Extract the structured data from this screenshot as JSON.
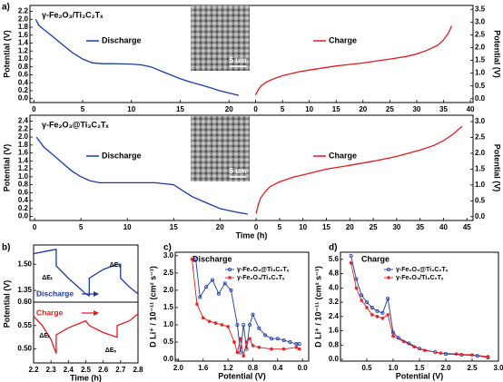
{
  "chart_data": [
    {
      "type": "line",
      "panel": "a)",
      "title": "γ-Fe₂O₃/Ti₃C₂Tₓ",
      "ylabel": "Potential (V)",
      "y2label": "Potential (V)",
      "image_scale": "5 um",
      "xlim": [
        -0.4,
        22.4
      ],
      "xticks": [
        0,
        5,
        10,
        15,
        20
      ],
      "x2lim": [
        -0.6,
        40.5
      ],
      "x2ticks": [
        0,
        5,
        10,
        15,
        20,
        25,
        30,
        35,
        40
      ],
      "ylim": [
        -0.1,
        2.35
      ],
      "yticks": [
        {
          "value": 0,
          "label": "0.0"
        },
        {
          "value": 0.2,
          "label": "0.2"
        },
        {
          "value": 0.4,
          "label": "0.4"
        },
        {
          "value": 0.6,
          "label": "0.6"
        },
        {
          "value": 0.8,
          "label": "0.8"
        },
        {
          "value": 1,
          "label": "1.0"
        },
        {
          "value": 1.2,
          "label": "1.2"
        },
        {
          "value": 1.4,
          "label": "1.4"
        },
        {
          "value": 1.6,
          "label": "1.6"
        },
        {
          "value": 1.8,
          "label": "1.8"
        },
        {
          "value": 2,
          "label": "2.0"
        },
        {
          "value": 2.2,
          "label": "2.2"
        }
      ],
      "y2lim": [
        -0.15,
        3.65
      ],
      "y2ticks": [
        {
          "value": 0,
          "label": "0.0"
        },
        0.5,
        {
          "value": 1,
          "label": "1.0"
        },
        1.5,
        {
          "value": 2,
          "label": "2.0"
        },
        2.5,
        {
          "value": 3,
          "label": "3.0"
        },
        3.5
      ],
      "series": [
        {
          "name": "Discharge",
          "color": "#1a3aa8",
          "x": [
            0.2,
            0.5,
            1,
            2,
            3,
            4,
            5,
            6,
            7,
            8,
            10,
            11,
            12,
            13,
            14,
            15,
            16,
            17,
            18,
            19,
            20,
            21
          ],
          "values": [
            2.0,
            1.85,
            1.75,
            1.55,
            1.35,
            1.15,
            1.0,
            0.9,
            0.88,
            0.88,
            0.87,
            0.85,
            0.8,
            0.7,
            0.6,
            0.5,
            0.42,
            0.35,
            0.28,
            0.2,
            0.14,
            0.08
          ]
        },
        {
          "name": "Charge",
          "color": "#e31a1c",
          "axis": "y2",
          "x": [
            0,
            0.5,
            1,
            2,
            3,
            5,
            8,
            10,
            15,
            20,
            25,
            28,
            30,
            32,
            34,
            35,
            36,
            36.5
          ],
          "values": [
            0.15,
            0.35,
            0.5,
            0.65,
            0.75,
            0.9,
            1.05,
            1.12,
            1.28,
            1.4,
            1.55,
            1.65,
            1.75,
            1.9,
            2.1,
            2.3,
            2.6,
            2.85
          ]
        }
      ]
    },
    {
      "type": "line",
      "title": "γ-Fe₂O₃@Ti₃C₂Tₓ",
      "xlabel": "Time (h)",
      "ylabel": "Potential (V)",
      "y2label": "Potential (V)",
      "image_scale": "5 um",
      "xlim": [
        -0.5,
        23.6
      ],
      "xticks": [
        0,
        5,
        10,
        15,
        20
      ],
      "x2lim": [
        -0.6,
        46.3
      ],
      "x2ticks": [
        0,
        5,
        10,
        15,
        20,
        25,
        30,
        35,
        40,
        45
      ],
      "ylim": [
        -0.1,
        2.55
      ],
      "yticks": [
        {
          "value": 0,
          "label": "0.0"
        },
        0.2,
        0.4,
        0.6,
        0.8,
        {
          "value": 1,
          "label": "1.0"
        },
        1.2,
        1.4,
        1.6,
        1.8,
        {
          "value": 2,
          "label": "2.0"
        },
        2.2,
        2.4
      ],
      "y2lim": [
        -0.12,
        3.2
      ],
      "y2ticks": [
        {
          "value": 0,
          "label": "0.0"
        },
        0.5,
        {
          "value": 1,
          "label": "1.0"
        },
        1.5,
        {
          "value": 2,
          "label": "2.0"
        },
        2.5,
        {
          "value": 3,
          "label": "3.0"
        }
      ],
      "series": [
        {
          "name": "Discharge",
          "color": "#1a3aa8",
          "x": [
            0.2,
            1,
            2,
            3,
            4,
            5,
            6,
            7,
            10,
            13,
            15,
            16,
            17,
            18,
            19,
            20,
            21,
            22,
            23
          ],
          "values": [
            2.0,
            1.75,
            1.55,
            1.35,
            1.15,
            1.0,
            0.9,
            0.85,
            0.85,
            0.85,
            0.8,
            0.65,
            0.5,
            0.4,
            0.3,
            0.2,
            0.15,
            0.1,
            0.06
          ]
        },
        {
          "name": "Charge",
          "color": "#e31a1c",
          "axis": "y2",
          "x": [
            0,
            0.5,
            1,
            2,
            3,
            5,
            8,
            10,
            15,
            20,
            25,
            30,
            35,
            38,
            40,
            42,
            44
          ],
          "values": [
            0.1,
            0.4,
            0.6,
            0.8,
            0.95,
            1.1,
            1.25,
            1.32,
            1.5,
            1.62,
            1.75,
            1.9,
            2.1,
            2.25,
            2.4,
            2.6,
            2.85
          ]
        }
      ]
    },
    {
      "type": "line",
      "panel": "b)",
      "ylabel": "Potential (V)",
      "annotations": [
        "ΔEₜ",
        "ΔEₛ"
      ],
      "xlim": [
        2.2,
        2.8
      ],
      "ylim": [
        1.283,
        1.61
      ],
      "yticks": [
        1.35,
        {
          "value": 1.5,
          "label": "1.50"
        }
      ],
      "series": [
        {
          "name": "Discharge",
          "color": "#1a3aa8",
          "x": [
            2.2,
            2.25,
            2.3,
            2.33,
            2.33,
            2.4,
            2.5,
            2.52,
            2.52,
            2.6,
            2.68,
            2.7,
            2.7,
            2.75,
            2.8
          ],
          "values": [
            1.56,
            1.57,
            1.58,
            1.585,
            1.49,
            1.42,
            1.33,
            1.32,
            1.42,
            1.47,
            1.5,
            1.5,
            1.42,
            1.37,
            1.33
          ]
        }
      ]
    },
    {
      "type": "line",
      "xlabel": "Time (h)",
      "annotations": [
        "ΔEₜ",
        "ΔEₛ"
      ],
      "xlim": [
        2.2,
        2.8
      ],
      "xticks": [
        2.2,
        2.3,
        2.4,
        2.5,
        2.6,
        2.7,
        2.8
      ],
      "ylim": [
        0.47,
        0.6
      ],
      "yticks": [
        {
          "value": 0.5,
          "label": "0.50"
        },
        0.55,
        {
          "value": 0.6,
          "label": "0.60"
        }
      ],
      "series": [
        {
          "name": "Charge",
          "color": "#e31a1c",
          "x": [
            2.2,
            2.25,
            2.3,
            2.33,
            2.33,
            2.4,
            2.5,
            2.52,
            2.6,
            2.68,
            2.68,
            2.75,
            2.8
          ],
          "values": [
            0.57,
            0.55,
            0.52,
            0.49,
            0.53,
            0.545,
            0.56,
            0.55,
            0.535,
            0.525,
            0.55,
            0.56,
            0.575
          ]
        }
      ]
    },
    {
      "type": "line",
      "panel": "c)",
      "title": "Discharge",
      "xlabel": "Potential (V)",
      "ylabel": "D Li⁺ / 10⁻¹¹ (cm² s⁻¹)",
      "legend": "upper right",
      "xlim": [
        2.05,
        -0.1
      ],
      "xticks": [
        {
          "value": 2,
          "label": "2.0"
        },
        1.6,
        1.2,
        0.8,
        0.4,
        {
          "value": 0,
          "label": "0.0"
        }
      ],
      "ylim": [
        -0.05,
        3.1
      ],
      "yticks": [
        {
          "value": 0,
          "label": "0.0"
        },
        0.5,
        {
          "value": 1,
          "label": "1.0"
        },
        1.5,
        {
          "value": 2,
          "label": "2.0"
        },
        2.5,
        {
          "value": 3,
          "label": "3.0"
        }
      ],
      "series": [
        {
          "name": "γ-Fe₂O₃@Ti₃C₂Tₓ",
          "color": "#1a3aa8",
          "marker": "o",
          "x": [
            1.72,
            1.65,
            1.55,
            1.45,
            1.35,
            1.25,
            1.15,
            1.05,
            1.0,
            0.95,
            0.9,
            0.85,
            0.8,
            0.7,
            0.6,
            0.5,
            0.4,
            0.3,
            0.2,
            0.1,
            0.05
          ],
          "values": [
            2.9,
            1.8,
            2.1,
            2.3,
            1.9,
            2.2,
            2.0,
            1.0,
            0.2,
            1.0,
            0.3,
            1.0,
            1.3,
            0.9,
            0.7,
            0.6,
            0.6,
            0.55,
            0.5,
            0.45,
            0.45
          ]
        },
        {
          "name": "γ-Fe₂O₃/Ti₃C₂Tₓ",
          "color": "#e31a1c",
          "marker": "*",
          "x": [
            1.78,
            1.7,
            1.6,
            1.5,
            1.4,
            1.3,
            1.2,
            1.1,
            1.05,
            1.0,
            0.95,
            0.9,
            0.85,
            0.8,
            0.7,
            0.5,
            0.3,
            0.1,
            0.05
          ],
          "values": [
            2.9,
            1.6,
            1.2,
            1.1,
            1.05,
            1.0,
            0.95,
            0.5,
            0.2,
            0.6,
            0.1,
            0.5,
            0.6,
            0.4,
            0.35,
            0.3,
            0.3,
            0.35,
            0.3
          ]
        }
      ]
    },
    {
      "type": "line",
      "panel": "d)",
      "title": "Charge",
      "xlabel": "Potential (V)",
      "ylabel": "D Li⁺ / 10⁻¹¹ (cm² s⁻¹)",
      "legend": "upper right",
      "xlim": [
        0,
        3.0
      ],
      "xticks": [
        0.5,
        {
          "value": 1,
          "label": "1.0"
        },
        1.5,
        {
          "value": 2,
          "label": "2.0"
        },
        2.5,
        {
          "value": 3,
          "label": "3.0"
        }
      ],
      "ylim": [
        -0.1,
        6.0
      ],
      "yticks": [
        {
          "value": 0,
          "label": "0.0"
        },
        0.8,
        1.6,
        2.4,
        3.2,
        {
          "value": 4,
          "label": "4.0"
        },
        4.8,
        5.6
      ],
      "series": [
        {
          "name": "γ-Fe₂O₃@Ti₃C₂Tₓ",
          "color": "#1a3aa8",
          "marker": "o",
          "x": [
            0.2,
            0.3,
            0.4,
            0.5,
            0.6,
            0.7,
            0.8,
            0.9,
            1.0,
            1.1,
            1.3,
            1.5,
            1.8,
            2.0,
            2.3,
            2.6,
            2.8
          ],
          "values": [
            5.8,
            4.5,
            3.6,
            3.2,
            2.9,
            2.7,
            2.6,
            3.4,
            1.5,
            1.2,
            0.9,
            0.6,
            0.4,
            0.3,
            0.25,
            0.2,
            0.1
          ]
        },
        {
          "name": "γ-Fe₂O₃/Ti₃C₂Tₓ",
          "color": "#e31a1c",
          "marker": "*",
          "x": [
            0.2,
            0.3,
            0.4,
            0.5,
            0.6,
            0.7,
            0.8,
            0.9,
            1.0,
            1.2,
            1.4,
            1.6,
            1.9,
            2.2,
            2.5,
            2.8
          ],
          "values": [
            5.4,
            4.0,
            3.3,
            2.9,
            2.5,
            2.4,
            2.3,
            2.5,
            1.3,
            1.0,
            0.7,
            0.5,
            0.35,
            0.3,
            0.25,
            0.15
          ]
        }
      ]
    }
  ]
}
